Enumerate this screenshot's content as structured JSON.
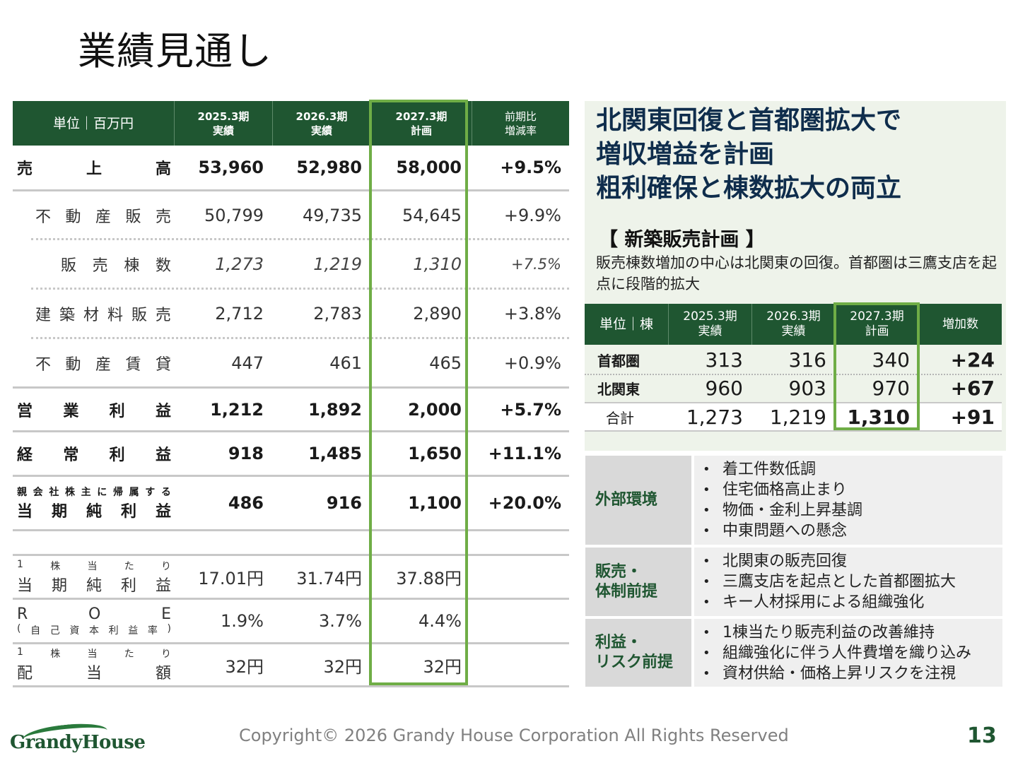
{
  "title": "業績見通し",
  "fin_table": {
    "header": {
      "unit": "単位｜百万円",
      "col1_top": "2025.3期",
      "col1_bottom": "実績",
      "col2_top": "2026.3期",
      "col2_bottom": "実績",
      "col3_top": "2027.3期",
      "col3_bottom": "計画",
      "col4_top": "前期比",
      "col4_bottom": "増減率"
    },
    "rows": [
      {
        "label": [
          "売",
          "上",
          "高"
        ],
        "v": [
          "53,960",
          "52,980",
          "58,000",
          "+9.5%"
        ]
      },
      {
        "label": [
          "不",
          "動",
          "産",
          "販",
          "売"
        ],
        "v": [
          "50,799",
          "49,735",
          "54,645",
          "+9.9%"
        ]
      },
      {
        "label": [
          "販",
          "売",
          "棟",
          "数"
        ],
        "v": [
          "1,273",
          "1,219",
          "1,310",
          "+7.5%"
        ]
      },
      {
        "label": [
          "建",
          "築",
          "材",
          "料",
          "販",
          "売"
        ],
        "v": [
          "2,712",
          "2,783",
          "2,890",
          "+3.8%"
        ]
      },
      {
        "label": [
          "不",
          "動",
          "産",
          "賃",
          "貸"
        ],
        "v": [
          "447",
          "461",
          "465",
          "+0.9%"
        ]
      },
      {
        "label": [
          "営",
          "業",
          "利",
          "益"
        ],
        "v": [
          "1,212",
          "1,892",
          "2,000",
          "+5.7%"
        ]
      },
      {
        "label": [
          "経",
          "常",
          "利",
          "益"
        ],
        "v": [
          "918",
          "1,485",
          "1,650",
          "+11.1%"
        ]
      },
      {
        "label_small": [
          "親",
          "会",
          "社",
          "株",
          "主",
          "に",
          "帰",
          "属",
          "す",
          "る"
        ],
        "label": [
          "当",
          "期",
          "純",
          "利",
          "益"
        ],
        "v": [
          "486",
          "916",
          "1,100",
          "+20.0%"
        ]
      },
      {
        "label_small": [
          "1",
          "株",
          "当",
          "た",
          "り"
        ],
        "label": [
          "当",
          "期",
          "純",
          "利",
          "益"
        ],
        "v": [
          "17.01円",
          "31.74円",
          "37.88円"
        ]
      },
      {
        "label_top": [
          "R",
          "O",
          "E"
        ],
        "label_small": [
          "(",
          "自",
          "己",
          "資",
          "本",
          "利",
          "益",
          "率",
          ")"
        ],
        "v": [
          "1.9%",
          "3.7%",
          "4.4%"
        ]
      },
      {
        "label_small": [
          "1",
          "株",
          "当",
          "た",
          "り"
        ],
        "label": [
          "配",
          "当",
          "額"
        ],
        "v": [
          "32円",
          "32円",
          "32円"
        ]
      }
    ]
  },
  "right": {
    "headline": [
      "北関東回復と首都圏拡大で",
      "増収増益を計画",
      "粗利確保と棟数拡大の両立"
    ],
    "subhead": "【 新築販売計画 】",
    "desc": "販売棟数増加の中心は北関東の回復。首都圏は三鷹支店を起点に段階的拡大",
    "units_table": {
      "header": {
        "unit": "単位｜棟",
        "col1_top": "2025.3期",
        "col1_bottom": "実績",
        "col2_top": "2026.3期",
        "col2_bottom": "実績",
        "col3_top": "2027.3期",
        "col3_bottom": "計画",
        "col4": "増加数"
      },
      "rows": [
        {
          "label": "首都圏",
          "v": [
            "313",
            "316",
            "340",
            "+24"
          ]
        },
        {
          "label": "北関東",
          "v": [
            "960",
            "903",
            "970",
            "+67"
          ]
        },
        {
          "label": "合計",
          "v": [
            "1,273",
            "1,219",
            "1,310",
            "+91"
          ]
        }
      ]
    }
  },
  "premises": [
    {
      "label": [
        "外部環境"
      ],
      "items": [
        "着工件数低調",
        "住宅価格高止まり",
        "物価・金利上昇基調",
        "中東問題への懸念"
      ]
    },
    {
      "label": [
        "販売・",
        "体制前提"
      ],
      "items": [
        "北関東の販売回復",
        "三鷹支店を起点とした首都圏拡大",
        "キー人材採用による組織強化"
      ]
    },
    {
      "label": [
        "利益・",
        "リスク前提"
      ],
      "items": [
        "1棟当たり販売利益の改善維持",
        "組織強化に伴う人件費増を織り込み",
        "資材供給・価格上昇リスクを注視"
      ]
    }
  ],
  "footer": {
    "logo": "GrandyHouse",
    "copyright": "Copyright© 2026 Grandy House Corporation All Rights Reserved",
    "page": "13"
  },
  "colors": {
    "brand_green": "#1f5631",
    "highlight_green": "#6fad46",
    "headline_navy": "#0f2d4c"
  }
}
